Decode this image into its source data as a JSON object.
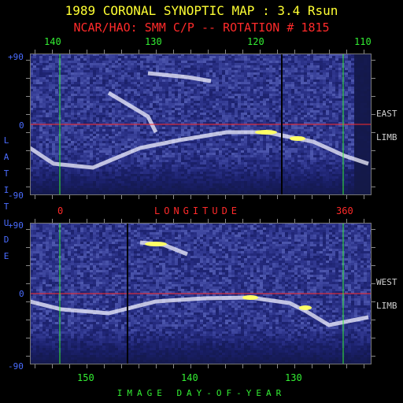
{
  "title": "1989 CORONAL SYNOPTIC MAP : 3.4 Rsun",
  "subtitle": "NCAR/HAO: SMM C/P -- ROTATION # 1815",
  "top_axis": {
    "ticks": [
      "140",
      "130",
      "120",
      "110"
    ],
    "lat_labels": [
      "+90",
      "0",
      "-90"
    ],
    "limb_label": [
      "EAST",
      "LIMB"
    ]
  },
  "middle_axis": {
    "ticks": [
      "0",
      "360"
    ],
    "label": "LONGITUDE"
  },
  "bottom_axis": {
    "ticks": [
      "150",
      "140",
      "130"
    ],
    "lat_labels": [
      "+90",
      "0",
      "-90"
    ],
    "limb_label": [
      "WEST",
      "LIMB"
    ],
    "label": "IMAGE DAY-OF-YEAR"
  },
  "y_label": "LATITUDE",
  "colors": {
    "title": "#ffff33",
    "subtitle": "#ff2a2a",
    "axis_green": "#33ee33",
    "axis_blue": "#4a6cff",
    "equator": "#ff2a2a",
    "marker": "#33ee33"
  }
}
